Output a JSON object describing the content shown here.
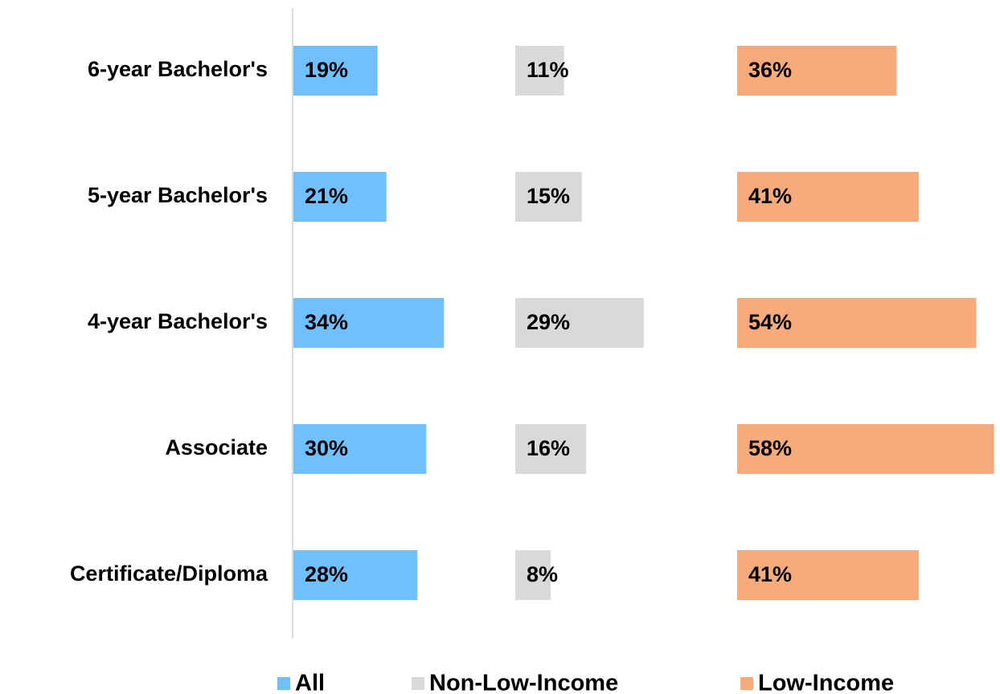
{
  "chart_data": {
    "type": "bar",
    "orientation": "horizontal",
    "categories": [
      "6-year Bachelor's",
      "5-year Bachelor's",
      "4-year Bachelor's",
      "Associate",
      "Certificate/Diploma"
    ],
    "series": [
      {
        "name": "All",
        "color": "#70bfff",
        "values": [
          19,
          21,
          34,
          30,
          28
        ],
        "value_labels": [
          "19%",
          "21%",
          "34%",
          "30%",
          "28%"
        ]
      },
      {
        "name": "Non-Low-Income",
        "color": "#d9d9d9",
        "values": [
          11,
          15,
          29,
          16,
          8
        ],
        "value_labels": [
          "11%",
          "15%",
          "29%",
          "16%",
          "8%"
        ]
      },
      {
        "name": "Low-Income",
        "color": "#f7ab7d",
        "values": [
          36,
          41,
          54,
          58,
          41
        ],
        "value_labels": [
          "36%",
          "41%",
          "54%",
          "58%",
          "41%"
        ]
      }
    ],
    "legend": "bottom"
  }
}
